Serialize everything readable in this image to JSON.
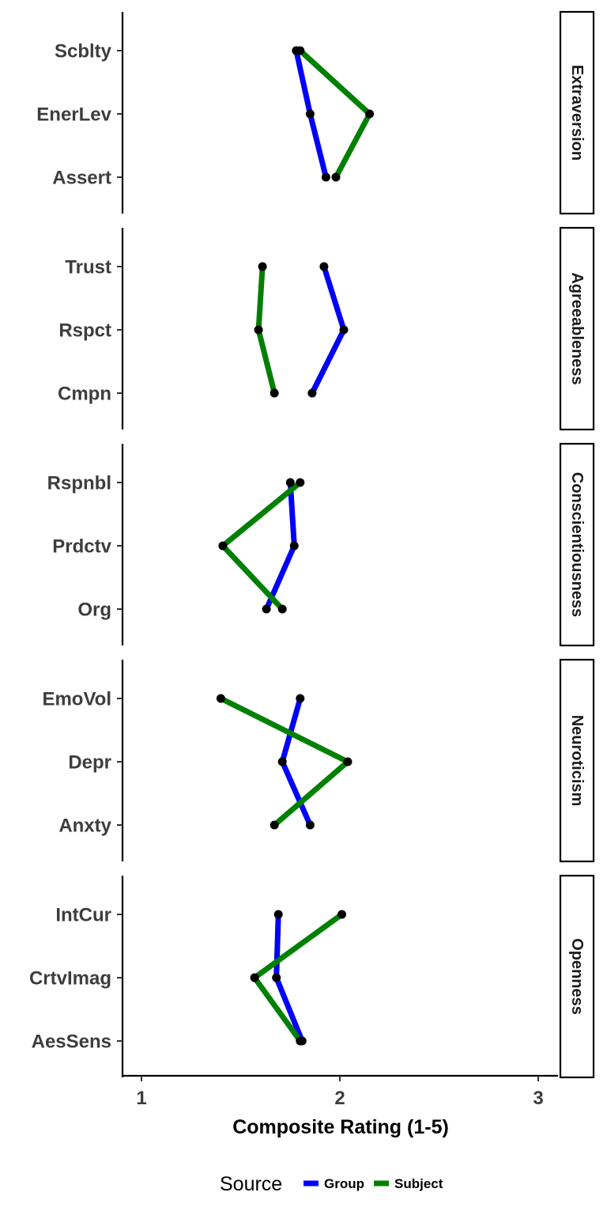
{
  "chart_data": {
    "type": "line",
    "xlabel": "Composite Rating (1-5)",
    "xlim": [
      0.9,
      3.1
    ],
    "xticks": [
      1,
      2,
      3
    ],
    "legend": {
      "title": "Source",
      "placement": "bottom",
      "entries": [
        {
          "name": "Group",
          "color": "#0000ff"
        },
        {
          "name": "Subject",
          "color": "#008000"
        }
      ]
    },
    "grid": false,
    "panels": [
      {
        "facet": "Extraversion",
        "categories": [
          "Scblty",
          "EnerLev",
          "Assert"
        ],
        "series": [
          {
            "name": "Group",
            "values": [
              1.78,
              1.85,
              1.93
            ]
          },
          {
            "name": "Subject",
            "values": [
              1.8,
              2.15,
              1.98
            ]
          }
        ]
      },
      {
        "facet": "Agreeableness",
        "categories": [
          "Trust",
          "Rspct",
          "Cmpn"
        ],
        "series": [
          {
            "name": "Group",
            "values": [
              1.92,
              2.02,
              1.86
            ]
          },
          {
            "name": "Subject",
            "values": [
              1.61,
              1.59,
              1.67
            ]
          }
        ]
      },
      {
        "facet": "Conscientiousness",
        "categories": [
          "Rspnbl",
          "Prdctv",
          "Org"
        ],
        "series": [
          {
            "name": "Group",
            "values": [
              1.75,
              1.77,
              1.63
            ]
          },
          {
            "name": "Subject",
            "values": [
              1.8,
              1.41,
              1.71
            ]
          }
        ]
      },
      {
        "facet": "Neuroticism",
        "categories": [
          "EmoVol",
          "Depr",
          "Anxty"
        ],
        "series": [
          {
            "name": "Group",
            "values": [
              1.8,
              1.71,
              1.85
            ]
          },
          {
            "name": "Subject",
            "values": [
              1.4,
              2.04,
              1.67
            ]
          }
        ]
      },
      {
        "facet": "Openness",
        "categories": [
          "IntCur",
          "CrtvImag",
          "AesSens"
        ],
        "series": [
          {
            "name": "Group",
            "values": [
              1.69,
              1.68,
              1.81
            ]
          },
          {
            "name": "Subject",
            "values": [
              2.01,
              1.57,
              1.8
            ]
          }
        ]
      }
    ]
  }
}
